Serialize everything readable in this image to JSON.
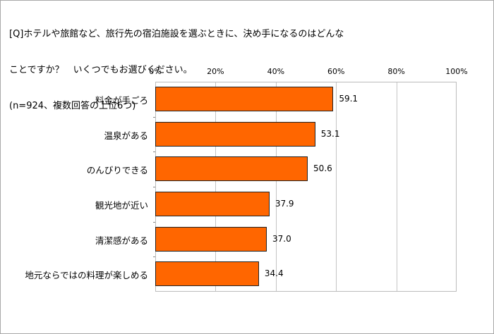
{
  "chart_data": {
    "type": "bar",
    "orientation": "horizontal",
    "title": "[Q]ホテルや旅館など、旅行先の宿泊施設を選ぶときに、決め手になるのはどんなことですか？　いくつでもお選びください。",
    "subtitle": "(n=924、複数回答の上位6つ)",
    "categories": [
      "料金が手ごろ",
      "温泉がある",
      "のんびりできる",
      "観光地が近い",
      "清潔感がある",
      "地元ならではの料理が楽しめる"
    ],
    "values": [
      59.1,
      53.1,
      50.6,
      37.9,
      37.0,
      34.4
    ],
    "value_labels": [
      "59.1",
      "53.1",
      "50.6",
      "37.9",
      "37.0",
      "34.4"
    ],
    "xlabel": "",
    "ylabel": "",
    "xlim": [
      0,
      100
    ],
    "x_ticks": [
      "0%",
      "20%",
      "40%",
      "60%",
      "80%",
      "100%"
    ],
    "x_axis_position": "top",
    "grid": true,
    "legend": null,
    "bar_color": "#ff6600",
    "bar_border_color": "#222222"
  },
  "title_lines": [
    "[Q]ホテルや旅館など、旅行先の宿泊施設を選ぶときに、決め手になるのはどんな",
    "ことですか？　いくつでもお選びください。",
    "(n=924、複数回答の上位6つ)"
  ]
}
